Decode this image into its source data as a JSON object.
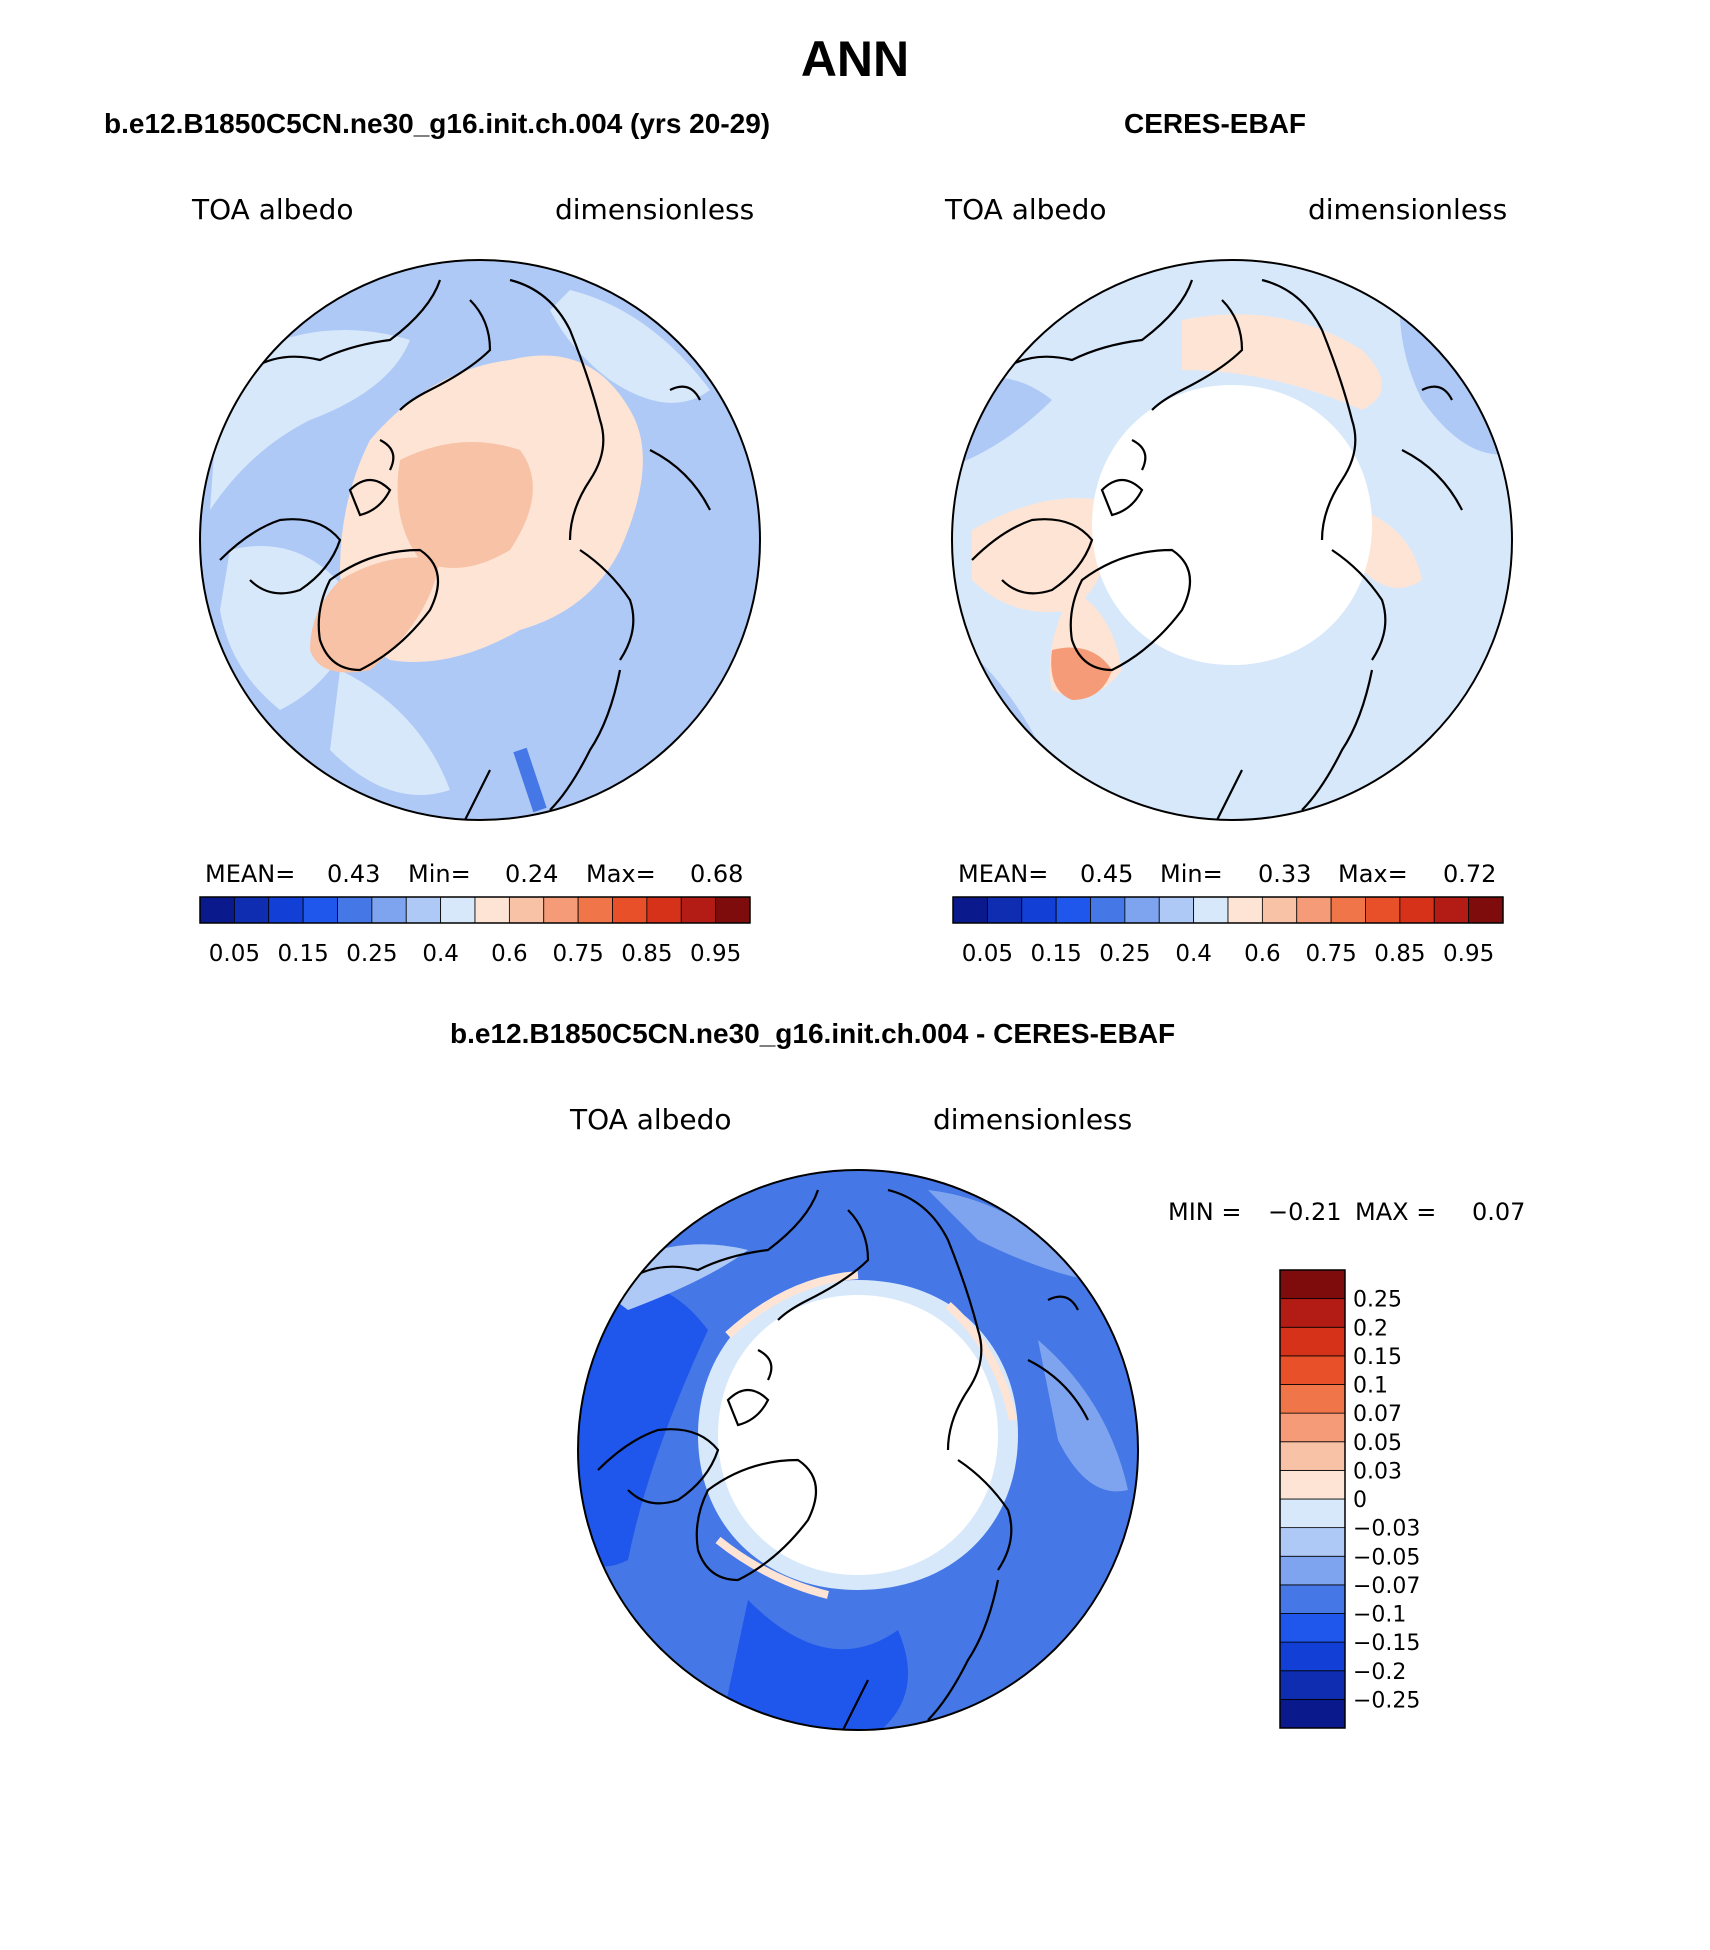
{
  "title": "ANN",
  "colors": {
    "abs_scale": [
      "#0a1a8c",
      "#0e2db0",
      "#1240d6",
      "#1f56ec",
      "#4578e6",
      "#7fa4ef",
      "#aec9f6",
      "#d8e8fb",
      "#fde4d5",
      "#f8c2a6",
      "#f59b78",
      "#f0764a",
      "#e8502a",
      "#d6321a",
      "#b21c14",
      "#7e0c0c"
    ],
    "diff_scale": [
      "#0a1a8c",
      "#0e2db0",
      "#1240d6",
      "#1f56ec",
      "#4578e6",
      "#7fa4ef",
      "#aec9f6",
      "#d8e8fb",
      "#fde4d5",
      "#f8c2a6",
      "#f59b78",
      "#f0764a",
      "#e8502a",
      "#d6321a",
      "#b21c14",
      "#7e0c0c"
    ]
  },
  "panels": [
    {
      "title": "b.e12.B1850C5CN.ne30_g16.init.ch.004 (yrs 20-29)",
      "left_label": "TOA albedo",
      "right_label": "dimensionless",
      "mean_label": "MEAN=",
      "mean": "0.43",
      "min_label": "Min=",
      "min": "0.24",
      "max_label": "Max=",
      "max": "0.68",
      "ticks": [
        "0.05",
        "0.15",
        "0.25",
        "0.4",
        "0.6",
        "0.75",
        "0.85",
        "0.95"
      ]
    },
    {
      "title": "CERES-EBAF",
      "left_label": "TOA albedo",
      "right_label": "dimensionless",
      "mean_label": "MEAN=",
      "mean": "0.45",
      "min_label": "Min=",
      "min": "0.33",
      "max_label": "Max=",
      "max": "0.72",
      "ticks": [
        "0.05",
        "0.15",
        "0.25",
        "0.4",
        "0.6",
        "0.75",
        "0.85",
        "0.95"
      ]
    }
  ],
  "diff": {
    "title": "b.e12.B1850C5CN.ne30_g16.init.ch.004 - CERES-EBAF",
    "left_label": "TOA albedo",
    "right_label": "dimensionless",
    "min_label": "MIN =",
    "min": "−0.21",
    "max_label": "MAX =",
    "max": "0.07",
    "ticks": [
      "0.25",
      "0.2",
      "0.15",
      "0.1",
      "0.07",
      "0.05",
      "0.03",
      "0",
      "−0.03",
      "−0.05",
      "−0.07",
      "−0.1",
      "−0.15",
      "−0.2",
      "−0.25"
    ]
  }
}
